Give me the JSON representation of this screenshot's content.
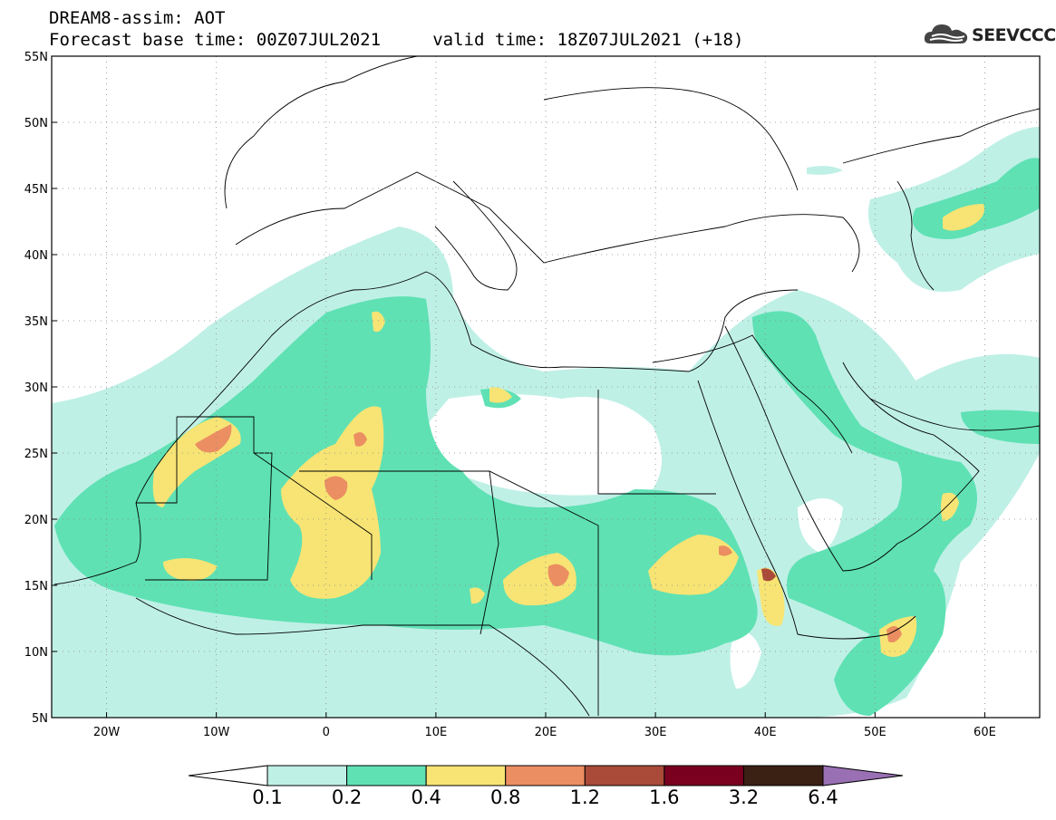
{
  "title": {
    "line1": "DREAM8-assim: AOT",
    "line2": "Forecast base time: 00Z07JUL2021     valid time: 18Z07JUL2021 (+18)"
  },
  "logo": {
    "text": "SEEVCCC",
    "icon": "cloud-icon"
  },
  "map": {
    "lat_labels": [
      "55N",
      "50N",
      "45N",
      "40N",
      "35N",
      "30N",
      "25N",
      "20N",
      "15N",
      "10N",
      "5N"
    ],
    "lat_values": [
      55,
      50,
      45,
      40,
      35,
      30,
      25,
      20,
      15,
      10,
      5
    ],
    "lon_labels": [
      "20W",
      "10W",
      "0",
      "10E",
      "20E",
      "30E",
      "40E",
      "50E",
      "60E"
    ],
    "lon_values": [
      -20,
      -10,
      0,
      10,
      20,
      30,
      40,
      50,
      60
    ],
    "lon_range": [
      -25,
      65
    ],
    "lat_range": [
      5,
      55
    ],
    "grid": "dotted"
  },
  "colorbar": {
    "labels": [
      "0.1",
      "0.2",
      "0.4",
      "0.8",
      "1.2",
      "1.6",
      "3.2",
      "6.4"
    ],
    "colors": [
      "#ffffff",
      "#bff0e6",
      "#5fe1b4",
      "#f7e474",
      "#eb8e62",
      "#aa4a38",
      "#7a0020",
      "#3b2014",
      "#9a70b4"
    ]
  },
  "colors": {
    "aot_01_02": "#bff0e6",
    "aot_02_04": "#5fe1b4",
    "aot_04_08": "#f7e474",
    "aot_08_12": "#eb8e62",
    "aot_12_16": "#aa4a38"
  }
}
